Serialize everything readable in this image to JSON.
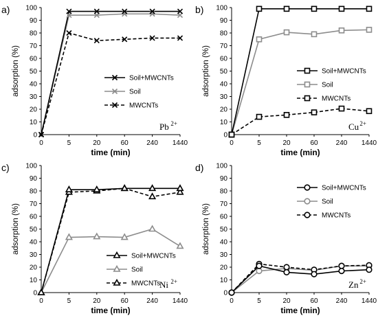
{
  "chart_data": [
    {
      "type": "line",
      "panel_label": "a)",
      "ion": {
        "symbol": "Pb",
        "charge": "2+"
      },
      "categories": [
        "0",
        "5",
        "20",
        "60",
        "240",
        "1440"
      ],
      "xlabel": "time (min)",
      "ylabel": "adsorption (%)",
      "ylim": [
        0,
        100
      ],
      "yticks": [
        "0",
        "10",
        "20",
        "30",
        "40",
        "50",
        "60",
        "70",
        "80",
        "90",
        "100"
      ],
      "legend_position": "middle-right",
      "series": [
        {
          "name": "Soil+MWCNTs",
          "values": [
            0,
            97,
            97,
            97,
            97,
            97
          ],
          "color": "#000000",
          "dash": "solid",
          "marker": "x"
        },
        {
          "name": "Soil",
          "values": [
            0,
            94,
            94,
            95,
            95,
            94
          ],
          "color": "#8c8c8c",
          "dash": "solid",
          "marker": "x"
        },
        {
          "name": "MWCNTs",
          "values": [
            0,
            80,
            74,
            75,
            76,
            76
          ],
          "color": "#000000",
          "dash": "dashed",
          "marker": "x"
        }
      ]
    },
    {
      "type": "line",
      "panel_label": "b)",
      "ion": {
        "symbol": "Cu",
        "charge": "2+"
      },
      "categories": [
        "0",
        "5",
        "20",
        "60",
        "240",
        "1440"
      ],
      "xlabel": "time (min)",
      "ylabel": "adsorption (%)",
      "ylim": [
        0,
        100
      ],
      "yticks": [
        "0",
        "10",
        "20",
        "30",
        "40",
        "50",
        "60",
        "70",
        "80",
        "90",
        "100"
      ],
      "legend_position": "middle-right",
      "series": [
        {
          "name": "Soil+MWCNTs",
          "values": [
            0,
            99,
            99,
            99,
            99,
            99
          ],
          "color": "#000000",
          "dash": "solid",
          "marker": "square"
        },
        {
          "name": "Soil",
          "values": [
            0,
            75,
            80.5,
            79,
            82,
            82.5
          ],
          "color": "#8c8c8c",
          "dash": "solid",
          "marker": "square"
        },
        {
          "name": "MWCNTs",
          "values": [
            0,
            14,
            15.5,
            17.5,
            20.5,
            18.5
          ],
          "color": "#000000",
          "dash": "dashed",
          "marker": "square"
        }
      ]
    },
    {
      "type": "line",
      "panel_label": "c)",
      "ion": {
        "symbol": "Ni",
        "charge": "2+"
      },
      "categories": [
        "0",
        "5",
        "20",
        "60",
        "240",
        "1440"
      ],
      "xlabel": "time (min)",
      "ylabel": "adsorption (%)",
      "ylim": [
        0,
        100
      ],
      "yticks": [
        "0",
        "10",
        "20",
        "30",
        "40",
        "50",
        "60",
        "70",
        "80",
        "90",
        "100"
      ],
      "legend_position": "middle-right",
      "series": [
        {
          "name": "Soil+MWCNTs",
          "values": [
            0,
            81,
            81,
            82,
            82,
            82
          ],
          "color": "#000000",
          "dash": "solid",
          "marker": "triangle"
        },
        {
          "name": "Soil",
          "values": [
            0,
            43.5,
            44,
            43.5,
            50,
            36.5
          ],
          "color": "#8c8c8c",
          "dash": "solid",
          "marker": "triangle"
        },
        {
          "name": "MWCNTs",
          "values": [
            0,
            79,
            80,
            82,
            75.5,
            79
          ],
          "color": "#000000",
          "dash": "dashed",
          "marker": "triangle"
        }
      ]
    },
    {
      "type": "line",
      "panel_label": "d)",
      "ion": {
        "symbol": "Zn",
        "charge": "2+"
      },
      "categories": [
        "0",
        "5",
        "20",
        "60",
        "240",
        "1440"
      ],
      "xlabel": "time (min)",
      "ylabel": "adsorption (%)",
      "ylim": [
        0,
        100
      ],
      "yticks": [
        "0",
        "10",
        "20",
        "30",
        "40",
        "50",
        "60",
        "70",
        "80",
        "90",
        "100"
      ],
      "legend_position": "top-right",
      "series": [
        {
          "name": "Soil+MWCNTs",
          "values": [
            0,
            21,
            16,
            14.5,
            17,
            18
          ],
          "color": "#000000",
          "dash": "solid",
          "marker": "circle"
        },
        {
          "name": "Soil",
          "values": [
            0,
            17,
            19,
            17.5,
            21,
            21
          ],
          "color": "#8c8c8c",
          "dash": "solid",
          "marker": "circle"
        },
        {
          "name": "MWCNTs",
          "values": [
            0,
            22.5,
            20,
            18,
            21,
            21.5
          ],
          "color": "#000000",
          "dash": "dashed",
          "marker": "circle"
        }
      ]
    }
  ]
}
